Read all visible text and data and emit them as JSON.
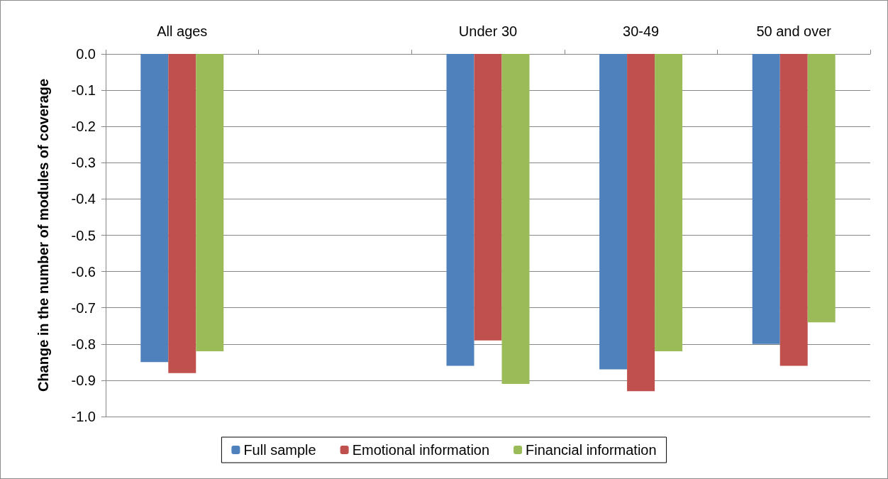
{
  "chart_data": {
    "type": "bar",
    "ylabel": "Change in the number of modules of coverage",
    "categories": [
      "All ages",
      null,
      "Under 30",
      "30-49",
      "50 and over"
    ],
    "series": [
      {
        "name": "Full sample",
        "color": "#4f81bd",
        "values": [
          -0.85,
          null,
          -0.86,
          -0.87,
          -0.8
        ]
      },
      {
        "name": "Emotional information",
        "color": "#c0504d",
        "values": [
          -0.88,
          null,
          -0.79,
          -0.93,
          -0.86
        ]
      },
      {
        "name": "Financial information",
        "color": "#9bbb59",
        "values": [
          -0.82,
          null,
          -0.91,
          -0.82,
          -0.74
        ]
      }
    ],
    "ylim": [
      -1.0,
      0.0
    ],
    "yticks": [
      {
        "value": 0,
        "label": "0.0"
      },
      -0.1,
      -0.2,
      -0.3,
      -0.4,
      -0.5,
      -0.6,
      -0.7,
      -0.8,
      -0.9,
      {
        "value": -1,
        "label": "-1.0"
      }
    ],
    "grid": "y",
    "legend": "bottom"
  }
}
